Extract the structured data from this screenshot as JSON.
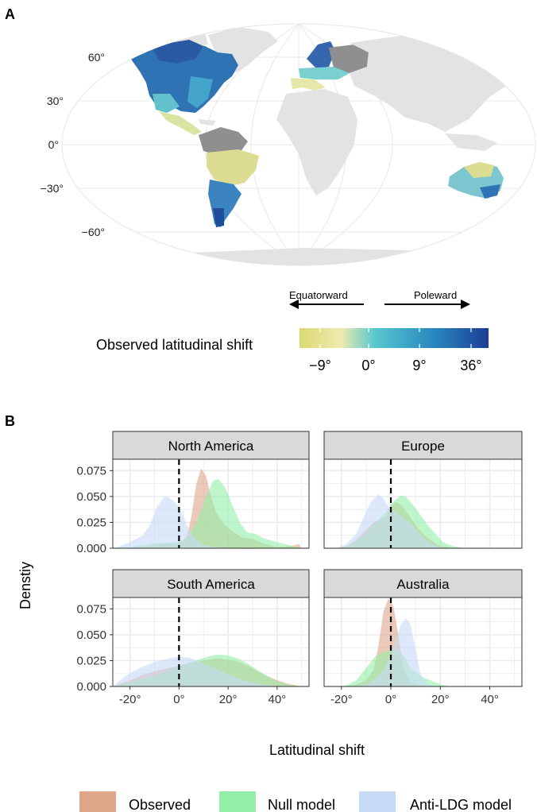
{
  "panel_a": {
    "panel_label": "A",
    "lat_labels": [
      "60°",
      "30°",
      "0°",
      "−30°",
      "−60°"
    ],
    "colorbar": {
      "title": "Observed latitudinal shift",
      "tick_labels": [
        "−9°",
        "0°",
        "9°",
        "36°"
      ],
      "colors": [
        "#dbd972",
        "#eeeab0",
        "#57c7cf",
        "#2a8ac0",
        "#1c3e95"
      ],
      "arrow_left_label": "Equatorward",
      "arrow_right_label": "Poleward"
    }
  },
  "panel_b": {
    "panel_label": "B",
    "ylabel": "Denstiy",
    "xlabel": "Latitudinal shift"
  },
  "legend": {
    "items": [
      {
        "label": "Observed",
        "color": "#e0a68a"
      },
      {
        "label": "Null model",
        "color": "#95eea8"
      },
      {
        "label": "Anti-LDG model",
        "color": "#c6daf6"
      }
    ]
  },
  "chart_data": {
    "type": "area",
    "x_tick_labels": [
      "-20°",
      "0°",
      "20°",
      "40°"
    ],
    "x_ticks": [
      -20,
      0,
      20,
      40
    ],
    "y_tick_labels": [
      "0.000",
      "0.025",
      "0.050",
      "0.075"
    ],
    "y_ticks": [
      0,
      0.025,
      0.05,
      0.075
    ],
    "xlim": [
      -27,
      53
    ],
    "ylim": [
      0,
      0.086
    ],
    "vline_x": 0,
    "grid": true,
    "series_names": [
      "Observed",
      "Null model",
      "Anti-LDG model"
    ],
    "colors": {
      "Observed": "#e0a68a",
      "Null model": "#95eea8",
      "Anti-LDG model": "#c6daf6"
    },
    "facets": [
      {
        "name": "North America",
        "series": [
          {
            "name": "Observed",
            "points": [
              [
                -20,
                0.0
              ],
              [
                -15,
                0.001
              ],
              [
                -10,
                0.003
              ],
              [
                -6,
                0.005
              ],
              [
                -3,
                0.004
              ],
              [
                0,
                0.004
              ],
              [
                3,
                0.01
              ],
              [
                5,
                0.03
              ],
              [
                7,
                0.062
              ],
              [
                9,
                0.077
              ],
              [
                11,
                0.07
              ],
              [
                13,
                0.05
              ],
              [
                15,
                0.035
              ],
              [
                18,
                0.024
              ],
              [
                22,
                0.016
              ],
              [
                26,
                0.01
              ],
              [
                30,
                0.009
              ],
              [
                35,
                0.004
              ],
              [
                40,
                0.001
              ],
              [
                45,
                0.002
              ],
              [
                49,
                0.004
              ],
              [
                50,
                0.0
              ]
            ]
          },
          {
            "name": "Null model",
            "points": [
              [
                -25,
                0.0
              ],
              [
                -20,
                0.001
              ],
              [
                -15,
                0.003
              ],
              [
                -10,
                0.005
              ],
              [
                -5,
                0.005
              ],
              [
                0,
                0.006
              ],
              [
                4,
                0.012
              ],
              [
                8,
                0.03
              ],
              [
                11,
                0.05
              ],
              [
                14,
                0.065
              ],
              [
                16,
                0.067
              ],
              [
                19,
                0.058
              ],
              [
                22,
                0.04
              ],
              [
                25,
                0.024
              ],
              [
                28,
                0.015
              ],
              [
                31,
                0.014
              ],
              [
                35,
                0.009
              ],
              [
                40,
                0.006
              ],
              [
                45,
                0.003
              ],
              [
                50,
                0.0
              ]
            ]
          },
          {
            "name": "Anti-LDG model",
            "points": [
              [
                -27,
                0.0
              ],
              [
                -24,
                0.002
              ],
              [
                -20,
                0.006
              ],
              [
                -15,
                0.012
              ],
              [
                -12,
                0.022
              ],
              [
                -9,
                0.04
              ],
              [
                -6,
                0.05
              ],
              [
                -4,
                0.049
              ],
              [
                -2,
                0.045
              ],
              [
                0,
                0.04
              ],
              [
                2,
                0.03
              ],
              [
                4,
                0.018
              ],
              [
                7,
                0.008
              ],
              [
                10,
                0.003
              ],
              [
                15,
                0.001
              ],
              [
                20,
                0.0
              ]
            ]
          }
        ]
      },
      {
        "name": "Europe",
        "series": [
          {
            "name": "Observed",
            "points": [
              [
                -22,
                0.0
              ],
              [
                -18,
                0.002
              ],
              [
                -14,
                0.008
              ],
              [
                -10,
                0.018
              ],
              [
                -7,
                0.025
              ],
              [
                -4,
                0.028
              ],
              [
                -2,
                0.031
              ],
              [
                0,
                0.04
              ],
              [
                2,
                0.045
              ],
              [
                4,
                0.042
              ],
              [
                7,
                0.033
              ],
              [
                10,
                0.022
              ],
              [
                13,
                0.014
              ],
              [
                16,
                0.008
              ],
              [
                20,
                0.002
              ],
              [
                25,
                0.0
              ]
            ]
          },
          {
            "name": "Null model",
            "points": [
              [
                -22,
                0.0
              ],
              [
                -18,
                0.002
              ],
              [
                -14,
                0.007
              ],
              [
                -10,
                0.015
              ],
              [
                -6,
                0.025
              ],
              [
                -2,
                0.035
              ],
              [
                1,
                0.045
              ],
              [
                4,
                0.051
              ],
              [
                6,
                0.05
              ],
              [
                9,
                0.042
              ],
              [
                12,
                0.032
              ],
              [
                15,
                0.022
              ],
              [
                18,
                0.014
              ],
              [
                21,
                0.006
              ],
              [
                25,
                0.002
              ],
              [
                30,
                0.0
              ]
            ]
          },
          {
            "name": "Anti-LDG model",
            "points": [
              [
                -22,
                0.0
              ],
              [
                -18,
                0.004
              ],
              [
                -14,
                0.014
              ],
              [
                -11,
                0.03
              ],
              [
                -8,
                0.045
              ],
              [
                -5,
                0.052
              ],
              [
                -3,
                0.048
              ],
              [
                -1,
                0.04
              ],
              [
                2,
                0.035
              ],
              [
                5,
                0.03
              ],
              [
                8,
                0.024
              ],
              [
                11,
                0.016
              ],
              [
                14,
                0.008
              ],
              [
                18,
                0.002
              ],
              [
                22,
                0.0
              ]
            ]
          }
        ]
      },
      {
        "name": "South America",
        "series": [
          {
            "name": "Observed",
            "points": [
              [
                -27,
                0.0
              ],
              [
                -20,
                0.006
              ],
              [
                -14,
                0.012
              ],
              [
                -8,
                0.016
              ],
              [
                -4,
                0.018
              ],
              [
                0,
                0.02
              ],
              [
                4,
                0.022
              ],
              [
                8,
                0.024
              ],
              [
                12,
                0.026
              ],
              [
                16,
                0.027
              ],
              [
                20,
                0.026
              ],
              [
                24,
                0.024
              ],
              [
                28,
                0.02
              ],
              [
                32,
                0.015
              ],
              [
                36,
                0.01
              ],
              [
                40,
                0.006
              ],
              [
                44,
                0.003
              ],
              [
                48,
                0.001
              ],
              [
                50,
                0.0
              ]
            ]
          },
          {
            "name": "Null model",
            "points": [
              [
                -27,
                0.0
              ],
              [
                -20,
                0.004
              ],
              [
                -14,
                0.008
              ],
              [
                -8,
                0.012
              ],
              [
                -4,
                0.016
              ],
              [
                0,
                0.02
              ],
              [
                4,
                0.023
              ],
              [
                8,
                0.026
              ],
              [
                12,
                0.029
              ],
              [
                16,
                0.031
              ],
              [
                20,
                0.03
              ],
              [
                24,
                0.027
              ],
              [
                28,
                0.022
              ],
              [
                32,
                0.016
              ],
              [
                36,
                0.01
              ],
              [
                40,
                0.005
              ],
              [
                44,
                0.002
              ],
              [
                48,
                0.001
              ],
              [
                50,
                0.0
              ]
            ]
          },
          {
            "name": "Anti-LDG model",
            "points": [
              [
                -27,
                0.0
              ],
              [
                -22,
                0.01
              ],
              [
                -16,
                0.018
              ],
              [
                -10,
                0.024
              ],
              [
                -4,
                0.027
              ],
              [
                0,
                0.029
              ],
              [
                4,
                0.028
              ],
              [
                8,
                0.024
              ],
              [
                12,
                0.02
              ],
              [
                16,
                0.016
              ],
              [
                20,
                0.012
              ],
              [
                24,
                0.008
              ],
              [
                28,
                0.005
              ],
              [
                32,
                0.003
              ],
              [
                36,
                0.001
              ],
              [
                40,
                0.0
              ]
            ]
          }
        ]
      },
      {
        "name": "Australia",
        "series": [
          {
            "name": "Observed",
            "points": [
              [
                -20,
                0.0
              ],
              [
                -15,
                0.001
              ],
              [
                -10,
                0.006
              ],
              [
                -7,
                0.016
              ],
              [
                -5,
                0.04
              ],
              [
                -3,
                0.072
              ],
              [
                -1,
                0.085
              ],
              [
                1,
                0.078
              ],
              [
                3,
                0.05
              ],
              [
                5,
                0.018
              ],
              [
                8,
                0.004
              ],
              [
                12,
                0.001
              ],
              [
                15,
                0.0
              ]
            ]
          },
          {
            "name": "Null model",
            "points": [
              [
                -20,
                0.0
              ],
              [
                -17,
                0.002
              ],
              [
                -14,
                0.006
              ],
              [
                -10,
                0.018
              ],
              [
                -6,
                0.03
              ],
              [
                -2,
                0.034
              ],
              [
                1,
                0.036
              ],
              [
                3,
                0.035
              ],
              [
                5,
                0.03
              ],
              [
                8,
                0.018
              ],
              [
                12,
                0.01
              ],
              [
                16,
                0.006
              ],
              [
                20,
                0.002
              ],
              [
                24,
                0.0
              ]
            ]
          },
          {
            "name": "Anti-LDG model",
            "points": [
              [
                -15,
                0.0
              ],
              [
                -10,
                0.002
              ],
              [
                -6,
                0.008
              ],
              [
                -3,
                0.016
              ],
              [
                0,
                0.03
              ],
              [
                2,
                0.045
              ],
              [
                4,
                0.06
              ],
              [
                6,
                0.066
              ],
              [
                8,
                0.06
              ],
              [
                10,
                0.035
              ],
              [
                12,
                0.012
              ],
              [
                15,
                0.002
              ],
              [
                18,
                0.0
              ]
            ]
          }
        ]
      }
    ]
  }
}
